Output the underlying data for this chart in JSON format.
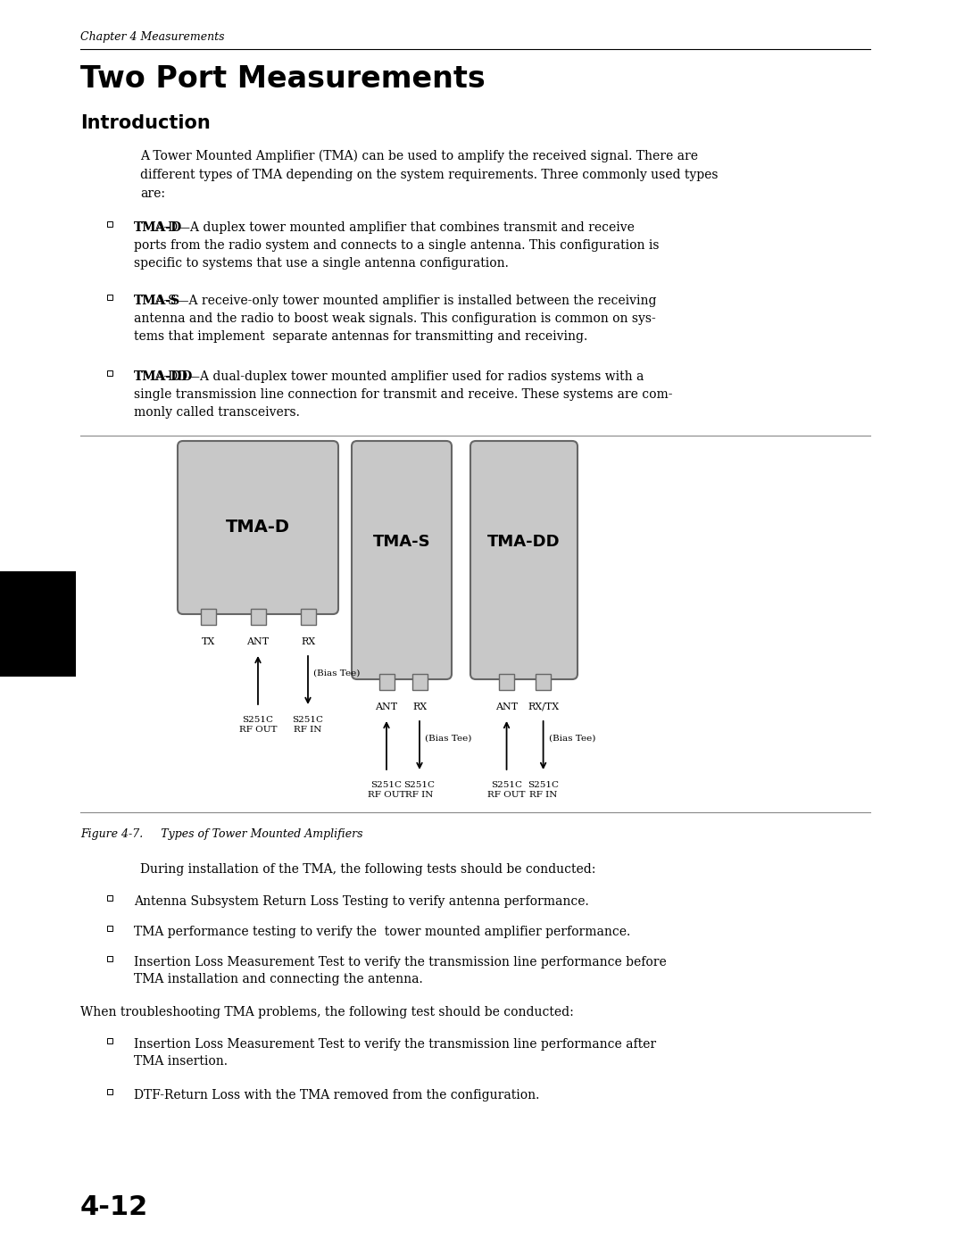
{
  "page_header": "Chapter 4 Measurements",
  "title": "Two Port Measurements",
  "subtitle": "Introduction",
  "body_text": "A Tower Mounted Amplifier (TMA) can be used to amplify the received signal. There are\ndifferent types of TMA depending on the system requirements. Three commonly used types\nare:",
  "bullet1_bold": "TMA-D",
  "bullet1_rest": "—A duplex tower mounted amplifier that combines transmit and receive\nports from the radio system and connects to a single antenna. This configuration is\nspecific to systems that use a single antenna configuration.",
  "bullet2_bold": "TMA-S",
  "bullet2_rest": "—A receive-only tower mounted amplifier is installed between the receiving\nantenna and the radio to boost weak signals. This configuration is common on sys-\ntems that implement  separate antennas for transmitting and receiving.",
  "bullet3_bold": "TMA-DD",
  "bullet3_rest": "—A dual-duplex tower mounted amplifier used for radios systems with a\nsingle transmission line connection for transmit and receive. These systems are com-\nmonly called transceivers.",
  "figure_caption": "Figure 4-7.     Types of Tower Mounted Amplifiers",
  "para2_text": "During installation of the TMA, the following tests should be conducted:",
  "bullet4": "Antenna Subsystem Return Loss Testing to verify antenna performance.",
  "bullet5": "TMA performance testing to verify the  tower mounted amplifier performance.",
  "bullet6_l1": "Insertion Loss Measurement Test to verify the transmission line performance before",
  "bullet6_l2": "TMA installation and connecting the antenna.",
  "para3_text": "When troubleshooting TMA problems, the following test should be conducted:",
  "bullet7_l1": "Insertion Loss Measurement Test to verify the transmission line performance after",
  "bullet7_l2": "TMA insertion.",
  "bullet8": "DTF-Return Loss with the TMA removed from the configuration.",
  "page_number": "4-12",
  "bg_color": "#ffffff",
  "text_color": "#000000",
  "box_fill_color": "#c8c8c8",
  "box_edge_color": "#666666"
}
